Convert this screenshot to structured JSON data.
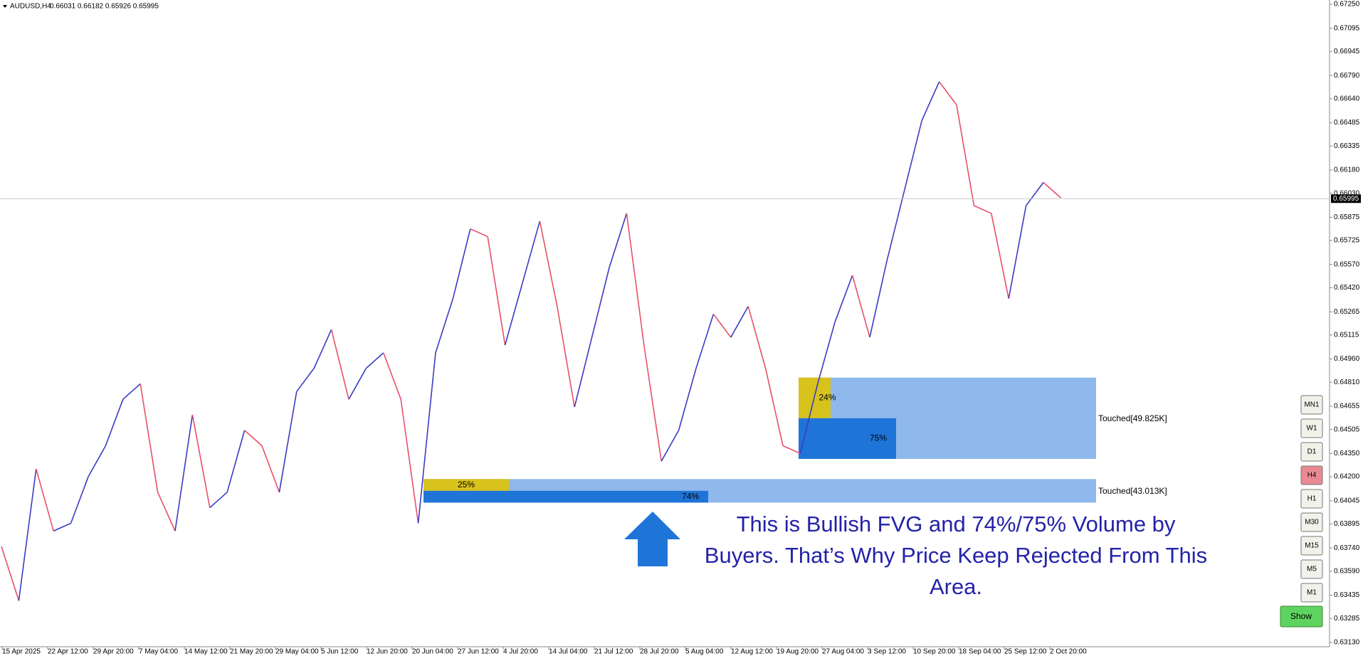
{
  "chart_data": {
    "type": "line",
    "title": "AUDUSD,H4",
    "subtitle": "0.66031 0.66182 0.65926 0.65995",
    "up_color": "#3b3bc4",
    "down_color": "#e8506a",
    "values": [
      0.6375,
      0.634,
      0.6425,
      0.6385,
      0.639,
      0.642,
      0.644,
      0.647,
      0.648,
      0.641,
      0.6385,
      0.646,
      0.64,
      0.641,
      0.645,
      0.644,
      0.641,
      0.6475,
      0.649,
      0.6515,
      0.647,
      0.649,
      0.65,
      0.647,
      0.639,
      0.65,
      0.6535,
      0.658,
      0.6575,
      0.6505,
      0.6545,
      0.6585,
      0.653,
      0.6465,
      0.651,
      0.6555,
      0.659,
      0.6505,
      0.643,
      0.645,
      0.649,
      0.6525,
      0.651,
      0.653,
      0.649,
      0.644,
      0.6435,
      0.648,
      0.652,
      0.655,
      0.651,
      0.656,
      0.6605,
      0.665,
      0.6675,
      0.666,
      0.6595,
      0.659,
      0.6535,
      0.6595,
      0.661,
      0.66
    ],
    "xtick_labels": [
      "15 Apr 2025",
      "22 Apr 12:00",
      "29 Apr 20:00",
      "7 May 04:00",
      "14 May 12:00",
      "21 May 20:00",
      "29 May 04:00",
      "5 Jun 12:00",
      "12 Jun 20:00",
      "20 Jun 04:00",
      "27 Jun 12:00",
      "4 Jul 20:00",
      "14 Jul 04:00",
      "21 Jul 12:00",
      "28 Jul 20:00",
      "5 Aug 04:00",
      "12 Aug 12:00",
      "19 Aug 20:00",
      "27 Aug 04:00",
      "3 Sep 12:00",
      "10 Sep 20:00",
      "18 Sep 04:00",
      "25 Sep 12:00",
      "2 Oct 20:00"
    ],
    "ylim": [
      0.6313,
      0.6725
    ],
    "yticks": [
      {
        "value": 0.6725,
        "label": "0.67250"
      },
      0.67095,
      0.66945,
      {
        "value": 0.6679,
        "label": "0.66790"
      },
      {
        "value": 0.6664,
        "label": "0.66640"
      },
      0.66485,
      0.66335,
      {
        "value": 0.6618,
        "label": "0.66180"
      },
      {
        "value": 0.6603,
        "label": "0.66030"
      },
      0.65875,
      0.65725,
      {
        "value": 0.6557,
        "label": "0.65570"
      },
      {
        "value": 0.6542,
        "label": "0.65420"
      },
      0.65265,
      0.65115,
      {
        "value": 0.6496,
        "label": "0.64960"
      },
      {
        "value": 0.6481,
        "label": "0.64810"
      },
      0.64655,
      0.64505,
      {
        "value": 0.6435,
        "label": "0.64350"
      },
      {
        "value": 0.642,
        "label": "0.64200"
      },
      0.64045,
      0.63895,
      {
        "value": 0.6374,
        "label": "0.63740"
      },
      {
        "value": 0.6359,
        "label": "0.63590"
      },
      0.63435,
      0.63285,
      {
        "value": 0.6313,
        "label": "0.63130"
      }
    ],
    "current_price": 0.65995,
    "zones": [
      {
        "top": 0.6484,
        "bottom": 0.64315,
        "sell_label": "24%",
        "buy_label": "75%",
        "status": "Touched[49.825K]"
      },
      {
        "top": 0.64185,
        "bottom": 0.64033,
        "sell_label": "25%",
        "buy_label": "74%",
        "status": "Touched[43.013K]"
      }
    ],
    "annotation": [
      "This is Bullish FVG and 74%/75% Volume by",
      "Buyers. That’s Why Price Keep Rejected From This",
      "Area."
    ],
    "timeframes": [
      "MN1",
      "W1",
      "D1",
      "H4",
      "H1",
      "M30",
      "M15",
      "M5",
      "M1"
    ],
    "active_timeframe": "H4",
    "show_button": "Show"
  }
}
